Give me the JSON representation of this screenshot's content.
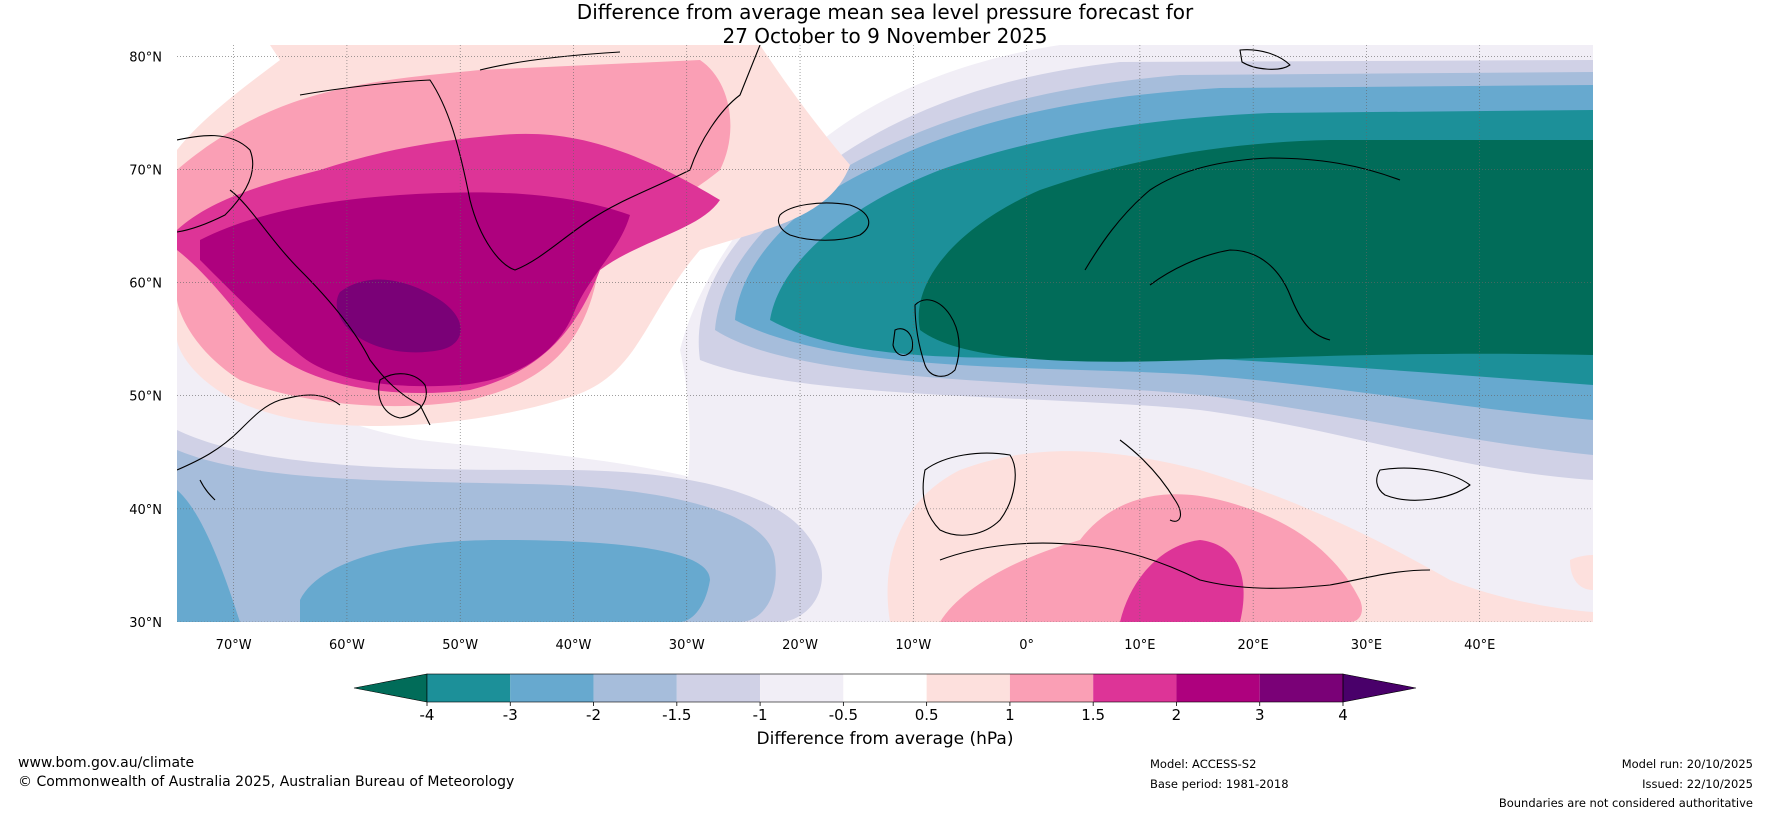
{
  "title": {
    "line1": "Difference from average mean sea level pressure forecast for",
    "line2": "27 October to 9 November 2025"
  },
  "map": {
    "lat_labels": [
      "80°N",
      "70°N",
      "60°N",
      "50°N",
      "40°N",
      "30°N"
    ],
    "lon_labels": [
      "70°W",
      "60°W",
      "50°W",
      "40°W",
      "30°W",
      "20°W",
      "10°W",
      "0°",
      "10°E",
      "20°E",
      "30°E",
      "40°E"
    ],
    "extent": {
      "lon_min": -75,
      "lon_max": 50,
      "lat_min": 30,
      "lat_max": 81
    }
  },
  "legend": {
    "ticks": [
      "-4",
      "-3",
      "-2",
      "-1.5",
      "-1",
      "-0.5",
      "0.5",
      "1",
      "1.5",
      "2",
      "3",
      "4"
    ],
    "colors": [
      "#016c59",
      "#1c9099",
      "#67a9cf",
      "#a6bddb",
      "#d0d1e6",
      "#f1eef6",
      "#ffffff",
      "#fde0dd",
      "#fa9fb5",
      "#dd3497",
      "#ae017e",
      "#7a0177",
      "#49006a"
    ],
    "label": "Difference from average (hPa)"
  },
  "footer": {
    "website": "www.bom.gov.au/climate",
    "copyright": "© Commonwealth of Australia 2025, Australian Bureau of Meteorology",
    "model": "Model: ACCESS-S2",
    "base_period": "Base period: 1981-2018",
    "model_run": "Model run: 20/10/2025",
    "issued": "Issued: 22/10/2025",
    "disclaimer": "Boundaries are not considered authoritative"
  }
}
